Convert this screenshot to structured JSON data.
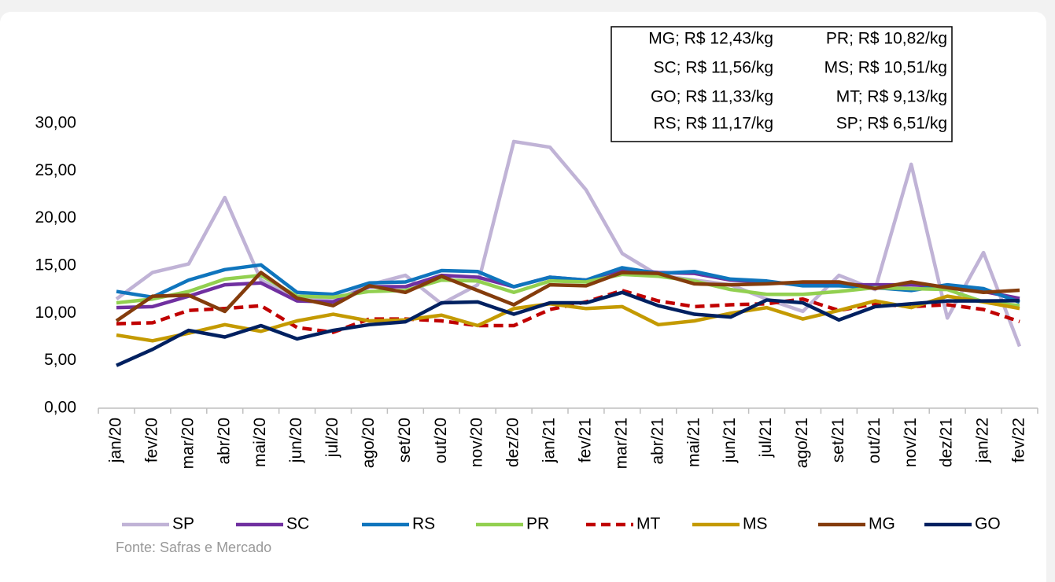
{
  "chart_data": {
    "type": "line",
    "categories": [
      "jan/20",
      "fev/20",
      "mar/20",
      "abr/20",
      "mai/20",
      "jun/20",
      "jul/20",
      "ago/20",
      "set/20",
      "out/20",
      "nov/20",
      "dez/20",
      "jan/21",
      "fev/21",
      "mar/21",
      "abr/21",
      "mai/21",
      "jun/21",
      "jul/21",
      "ago/21",
      "set/21",
      "out/21",
      "nov/21",
      "dez/21",
      "jan/22",
      "fev/22"
    ],
    "series": [
      {
        "name": "SP",
        "color": "#c0b3d6",
        "values": [
          11.5,
          14.3,
          15.2,
          22.2,
          13.5,
          11.5,
          11.3,
          13,
          14,
          11,
          13,
          28.1,
          27.5,
          23,
          16.3,
          14,
          13.5,
          13,
          11.5,
          10.2,
          14,
          12.5,
          25.7,
          9.5,
          16.4,
          6.51
        ]
      },
      {
        "name": "SC",
        "color": "#7030a0",
        "values": [
          10.6,
          10.7,
          11.8,
          13,
          13.2,
          11.3,
          11.2,
          12.8,
          12.8,
          14,
          13.8,
          12.8,
          13.8,
          13.5,
          14.6,
          14.3,
          14.2,
          13.5,
          13.3,
          13,
          13,
          13,
          13,
          12.8,
          12.3,
          11.56
        ]
      },
      {
        "name": "RS",
        "color": "#0f75bd",
        "values": [
          12.3,
          11.7,
          13.5,
          14.6,
          15.1,
          12.2,
          12,
          13.2,
          13.3,
          14.5,
          14.4,
          12.8,
          13.8,
          13.5,
          14.8,
          14.2,
          14.4,
          13.6,
          13.4,
          12.9,
          12.9,
          12.7,
          12.4,
          13,
          12.6,
          11.17
        ]
      },
      {
        "name": "PR",
        "color": "#92d050",
        "values": [
          11.1,
          11.5,
          12.3,
          13.6,
          14,
          11.8,
          11.7,
          12.3,
          12.4,
          13.5,
          13.4,
          12.2,
          13.4,
          13.3,
          14.1,
          13.9,
          13.4,
          12.5,
          12,
          12,
          12.3,
          12.7,
          12.6,
          12.5,
          11.2,
          10.82
        ]
      },
      {
        "name": "MT",
        "color": "#c00000",
        "dashed": true,
        "values": [
          8.9,
          9,
          10.3,
          10.5,
          10.8,
          8.5,
          8,
          9.4,
          9.4,
          9.2,
          8.7,
          8.7,
          10.4,
          11.2,
          12.4,
          11.3,
          10.7,
          10.9,
          11,
          11.5,
          10.3,
          11,
          10.7,
          10.9,
          10.4,
          9.13
        ]
      },
      {
        "name": "MS",
        "color": "#c49a00",
        "values": [
          7.7,
          7.1,
          7.9,
          8.8,
          8.1,
          9.2,
          9.9,
          9.2,
          9.3,
          9.8,
          8.7,
          10.5,
          11,
          10.5,
          10.7,
          8.8,
          9.2,
          10,
          10.6,
          9.4,
          10.3,
          11.3,
          10.6,
          11.8,
          11.2,
          10.51
        ]
      },
      {
        "name": "MG",
        "color": "#843c0c",
        "values": [
          9.2,
          11.8,
          11.9,
          10.2,
          14.3,
          11.6,
          10.8,
          12.9,
          12.2,
          13.9,
          12.4,
          10.9,
          13,
          12.9,
          14.3,
          14.2,
          13.1,
          13,
          13.1,
          13.3,
          13.3,
          12.6,
          13.3,
          12.7,
          12.2,
          12.43
        ]
      },
      {
        "name": "GO",
        "color": "#002060",
        "values": [
          4.5,
          6.2,
          8.2,
          7.5,
          8.7,
          7.3,
          8.2,
          8.8,
          9.1,
          11.1,
          11.2,
          9.9,
          11.1,
          11.1,
          12.2,
          10.8,
          9.9,
          9.6,
          11.4,
          11.1,
          9.3,
          10.7,
          11,
          11.3,
          11.3,
          11.33
        ]
      }
    ],
    "ylim": [
      0,
      30
    ],
    "yticks": [
      {
        "value": 0,
        "label": "0,00"
      },
      {
        "value": 5,
        "label": "5,00"
      },
      {
        "value": 10,
        "label": "10,00"
      },
      {
        "value": 15,
        "label": "15,00"
      },
      {
        "value": 20,
        "label": "20,00"
      },
      {
        "value": 25,
        "label": "25,00"
      },
      {
        "value": 30,
        "label": "30,00"
      }
    ],
    "annotations": [
      "MG; R$ 12,43/kg",
      "PR; R$ 10,82/kg",
      "SC; R$ 11,56/kg",
      "MS; R$ 10,51/kg",
      "GO; R$ 11,33/kg",
      "MT; R$ 9,13/kg",
      "RS; R$ 11,17/kg",
      "SP; R$ 6,51/kg"
    ],
    "source": "Fonte: Safras e Mercado",
    "legend": "bottom"
  }
}
